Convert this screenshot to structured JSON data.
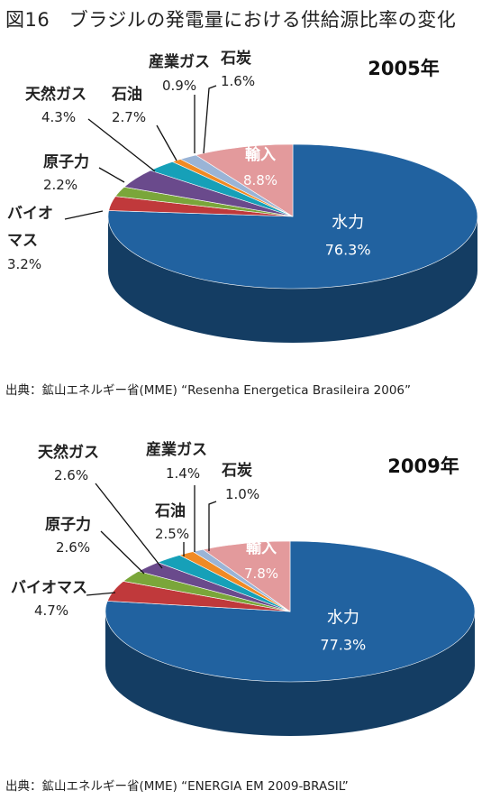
{
  "title": "図16　ブラジルの発電量における供給源比率の変化",
  "chart_data": [
    {
      "type": "pie",
      "title": "2005年",
      "source": "出典：鉱山エネルギー省(MME) “Resenha Energetica Brasileira 2006”",
      "slices": [
        {
          "label": "水力",
          "value": 76.3,
          "value_text": "76.3%",
          "color": "#2162a0"
        },
        {
          "label": "バイオ\nマス",
          "value": 3.2,
          "value_text": "3.2%",
          "color": "#c0393b"
        },
        {
          "label": "原子力",
          "value": 2.2,
          "value_text": "2.2%",
          "color": "#7aa63a"
        },
        {
          "label": "天然ガス",
          "value": 4.3,
          "value_text": "4.3%",
          "color": "#6a4a8c"
        },
        {
          "label": "石油",
          "value": 2.7,
          "value_text": "2.7%",
          "color": "#16a0b8"
        },
        {
          "label": "産業ガス",
          "value": 0.9,
          "value_text": "0.9%",
          "color": "#f08a24"
        },
        {
          "label": "石炭",
          "value": 1.6,
          "value_text": "1.6%",
          "color": "#9ab4d6"
        },
        {
          "label": "輸入",
          "value": 8.8,
          "value_text": "8.8%",
          "color": "#e39a9c"
        }
      ]
    },
    {
      "type": "pie",
      "title": "2009年",
      "source": "出典：鉱山エネルギー省(MME) “ENERGIA EM 2009-BRASIL”",
      "slices": [
        {
          "label": "水力",
          "value": 77.3,
          "value_text": "77.3%",
          "color": "#2162a0"
        },
        {
          "label": "バイオマス",
          "value": 4.7,
          "value_text": "4.7%",
          "color": "#c0393b"
        },
        {
          "label": "原子力",
          "value": 2.6,
          "value_text": "2.6%",
          "color": "#7aa63a"
        },
        {
          "label": "天然ガス",
          "value": 2.6,
          "value_text": "2.6%",
          "color": "#6a4a8c"
        },
        {
          "label": "石油",
          "value": 2.5,
          "value_text": "2.5%",
          "color": "#16a0b8"
        },
        {
          "label": "産業ガス",
          "value": 1.4,
          "value_text": "1.4%",
          "color": "#f08a24"
        },
        {
          "label": "石炭",
          "value": 1.0,
          "value_text": "1.0%",
          "color": "#9ab4d6"
        },
        {
          "label": "輸入",
          "value": 7.8,
          "value_text": "7.8%",
          "color": "#e39a9c"
        }
      ]
    }
  ]
}
